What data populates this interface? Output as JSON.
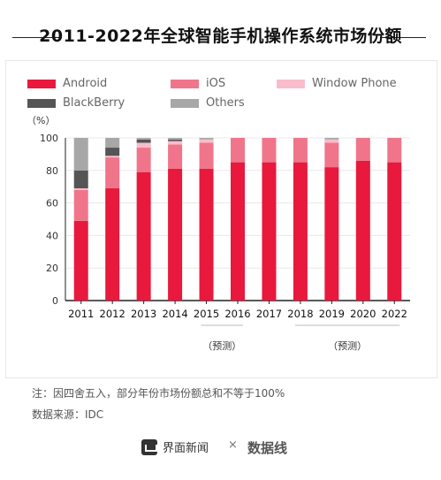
{
  "chart_data": {
    "type": "bar",
    "title": "2011-2022年全球智能手机操作系统市场份额",
    "ylabel": "（%）",
    "ylim": [
      0,
      100
    ],
    "yticks": [
      0,
      20,
      40,
      60,
      80,
      100
    ],
    "stacked": true,
    "categories": [
      "2011",
      "2012",
      "2013",
      "2014",
      "2015",
      "2016",
      "2017",
      "2018",
      "2019",
      "2020",
      "2022"
    ],
    "forecast_labels": [
      {
        "text": "（预测）",
        "from": "2015",
        "to": "2016"
      },
      {
        "text": "（预测）",
        "from": "2018",
        "to": "2022"
      }
    ],
    "series": [
      {
        "name": "Android",
        "color": "#e8193c",
        "values": [
          49,
          69,
          79,
          81,
          81,
          85,
          85,
          85,
          82,
          86,
          85
        ]
      },
      {
        "name": "iOS",
        "color": "#f0758b",
        "values": [
          19,
          19,
          15,
          15,
          16,
          15,
          15,
          15,
          15,
          14,
          15
        ]
      },
      {
        "name": "Window Phone",
        "color": "#f8bccb",
        "values": [
          1,
          1,
          3,
          2,
          2,
          0,
          0,
          0,
          2,
          0,
          0
        ]
      },
      {
        "name": "BlackBerry",
        "color": "#555555",
        "values": [
          11,
          5,
          2,
          1,
          0,
          0,
          0,
          0,
          0,
          0,
          0
        ]
      },
      {
        "name": "Others",
        "color": "#a7a7a7",
        "values": [
          20,
          6,
          1,
          1,
          1,
          0,
          0,
          0,
          1,
          0,
          0
        ]
      }
    ]
  },
  "notes": {
    "note": "注：因四舍五入，部分年份市场份额总和不等于100%",
    "source": "数据来源：IDC"
  },
  "brand": {
    "name": "界面新闻",
    "separator": "×",
    "partner": "数据线"
  }
}
